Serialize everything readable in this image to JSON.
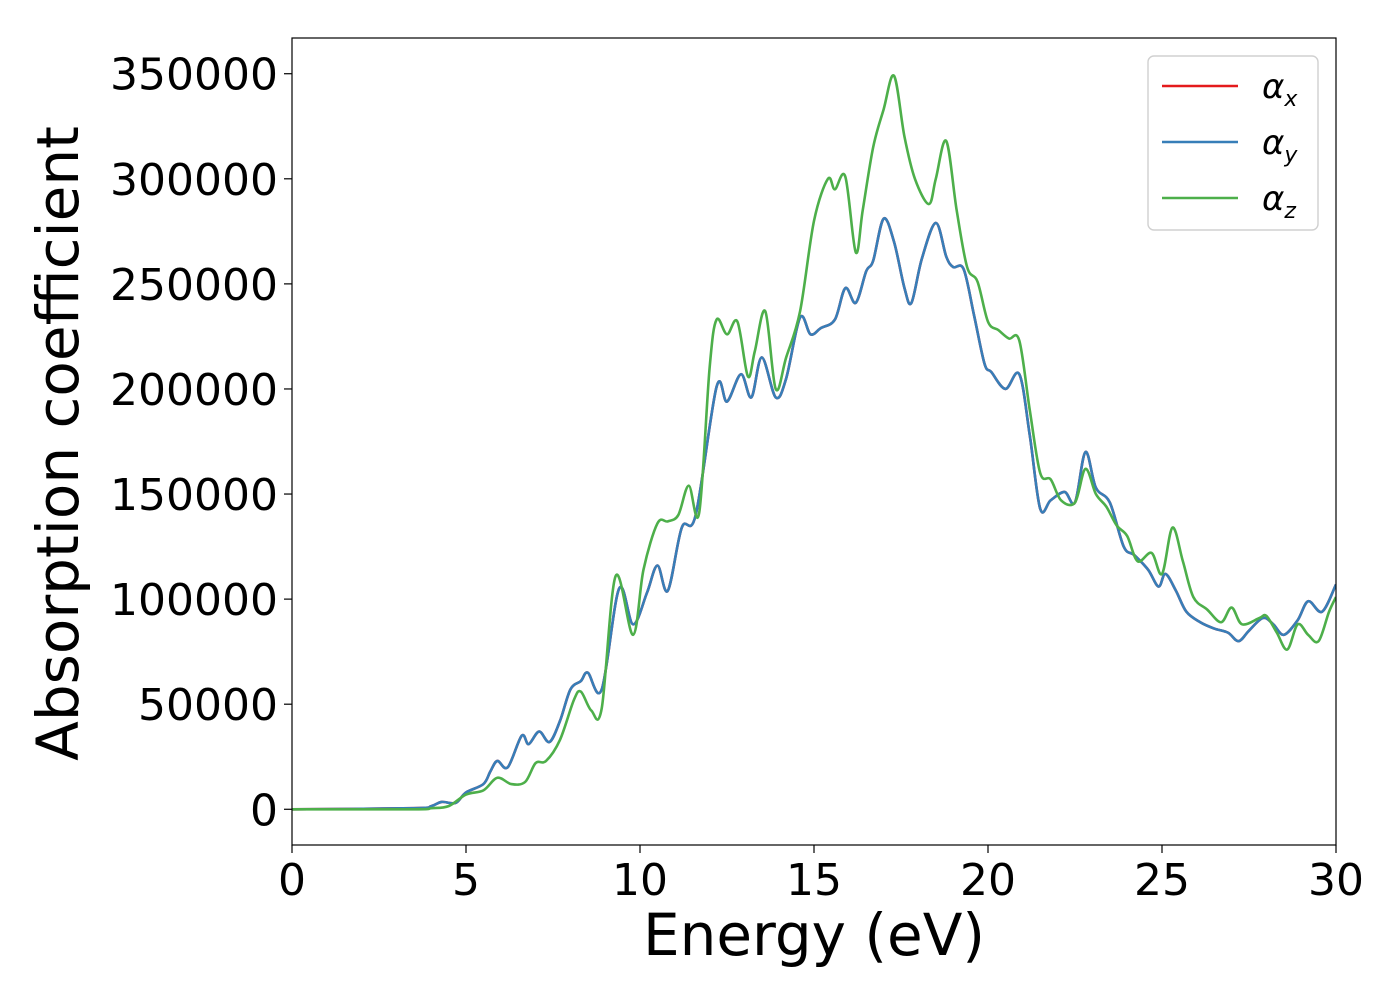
{
  "chart_data": {
    "type": "line",
    "title": "",
    "xlabel": "Energy (eV)",
    "ylabel": "Absorption coefficient",
    "xlim": [
      0,
      30
    ],
    "ylim": [
      -17000,
      367000
    ],
    "xticks": [
      0,
      5,
      10,
      15,
      20,
      25,
      30
    ],
    "xtick_labels": [
      "0",
      "5",
      "10",
      "15",
      "20",
      "25",
      "30"
    ],
    "yticks": [
      0,
      50000,
      100000,
      150000,
      200000,
      250000,
      300000,
      350000
    ],
    "ytick_labels": [
      "0",
      "50000",
      "100000",
      "150000",
      "200000",
      "250000",
      "300000",
      "350000"
    ],
    "grid": false,
    "legend_position": "top-right",
    "series": [
      {
        "name": "αx",
        "symbol": "α",
        "subscript": "x",
        "color": "#e41a1c",
        "x": [
          0,
          3.5,
          4.0,
          4.3,
          4.7,
          5.0,
          5.5,
          5.7,
          5.9,
          6.2,
          6.6,
          6.8,
          7.1,
          7.4,
          7.7,
          8.0,
          8.3,
          8.5,
          8.9,
          9.4,
          9.8,
          10.2,
          10.5,
          10.8,
          11.2,
          11.6,
          12.2,
          12.5,
          12.9,
          13.2,
          13.5,
          13.9,
          14.2,
          14.6,
          14.9,
          15.2,
          15.6,
          15.9,
          16.2,
          16.5,
          16.7,
          17.0,
          17.3,
          17.6,
          17.8,
          18.1,
          18.5,
          18.8,
          19.0,
          19.3,
          19.6,
          19.9,
          20.1,
          20.5,
          20.9,
          21.2,
          21.5,
          21.8,
          22.2,
          22.5,
          22.8,
          23.1,
          23.5,
          23.9,
          24.2,
          24.6,
          24.9,
          25.1,
          25.4,
          25.7,
          26.1,
          26.5,
          26.9,
          27.2,
          27.5,
          27.9,
          28.2,
          28.5,
          28.9,
          29.2,
          29.6,
          30.0
        ],
        "y": [
          0,
          500,
          1500,
          3500,
          3000,
          8000,
          12000,
          18000,
          23000,
          20000,
          35000,
          31000,
          37000,
          32000,
          42000,
          57000,
          61000,
          65000,
          57000,
          105000,
          88000,
          103000,
          116000,
          104000,
          134000,
          140000,
          201000,
          194000,
          207000,
          196000,
          215000,
          196000,
          205000,
          234000,
          226000,
          229000,
          233000,
          248000,
          241000,
          256000,
          261000,
          281000,
          270000,
          248000,
          241000,
          262000,
          279000,
          263000,
          258000,
          257000,
          235000,
          212000,
          208000,
          200000,
          207000,
          178000,
          143000,
          147000,
          151000,
          146000,
          170000,
          153000,
          146000,
          125000,
          121000,
          114000,
          106000,
          112000,
          104000,
          94000,
          89000,
          86000,
          84000,
          80000,
          85000,
          91000,
          88000,
          83000,
          90000,
          99000,
          94000,
          107000
        ]
      },
      {
        "name": "αy",
        "symbol": "α",
        "subscript": "y",
        "color": "#377eb8",
        "x": [
          0,
          3.5,
          4.0,
          4.3,
          4.7,
          5.0,
          5.5,
          5.7,
          5.9,
          6.2,
          6.6,
          6.8,
          7.1,
          7.4,
          7.7,
          8.0,
          8.3,
          8.5,
          8.9,
          9.4,
          9.8,
          10.2,
          10.5,
          10.8,
          11.2,
          11.6,
          12.2,
          12.5,
          12.9,
          13.2,
          13.5,
          13.9,
          14.2,
          14.6,
          14.9,
          15.2,
          15.6,
          15.9,
          16.2,
          16.5,
          16.7,
          17.0,
          17.3,
          17.6,
          17.8,
          18.1,
          18.5,
          18.8,
          19.0,
          19.3,
          19.6,
          19.9,
          20.1,
          20.5,
          20.9,
          21.2,
          21.5,
          21.8,
          22.2,
          22.5,
          22.8,
          23.1,
          23.5,
          23.9,
          24.2,
          24.6,
          24.9,
          25.1,
          25.4,
          25.7,
          26.1,
          26.5,
          26.9,
          27.2,
          27.5,
          27.9,
          28.2,
          28.5,
          28.9,
          29.2,
          29.6,
          30.0
        ],
        "y": [
          0,
          500,
          1500,
          3500,
          3000,
          8000,
          12000,
          18000,
          23000,
          20000,
          35000,
          31000,
          37000,
          32000,
          42000,
          57000,
          61000,
          65000,
          57000,
          105000,
          88000,
          103000,
          116000,
          104000,
          134000,
          140000,
          201000,
          194000,
          207000,
          196000,
          215000,
          196000,
          205000,
          234000,
          226000,
          229000,
          233000,
          248000,
          241000,
          256000,
          261000,
          281000,
          270000,
          248000,
          241000,
          262000,
          279000,
          263000,
          258000,
          257000,
          235000,
          212000,
          208000,
          200000,
          207000,
          178000,
          143000,
          147000,
          151000,
          146000,
          170000,
          153000,
          146000,
          125000,
          121000,
          114000,
          106000,
          112000,
          104000,
          94000,
          89000,
          86000,
          84000,
          80000,
          85000,
          91000,
          88000,
          83000,
          90000,
          99000,
          94000,
          107000
        ]
      },
      {
        "name": "αz",
        "symbol": "α",
        "subscript": "z",
        "color": "#4daf4a",
        "x": [
          0,
          3.5,
          4.0,
          4.5,
          5.0,
          5.5,
          5.9,
          6.3,
          6.7,
          7.0,
          7.3,
          7.7,
          8.1,
          8.3,
          8.6,
          8.9,
          9.3,
          9.8,
          10.1,
          10.5,
          10.8,
          11.1,
          11.4,
          11.7,
          12.0,
          12.2,
          12.5,
          12.8,
          13.1,
          13.3,
          13.6,
          13.9,
          14.2,
          14.6,
          15.0,
          15.4,
          15.6,
          15.9,
          16.2,
          16.4,
          16.7,
          17.0,
          17.3,
          17.6,
          17.9,
          18.3,
          18.5,
          18.8,
          19.1,
          19.4,
          19.7,
          20.0,
          20.3,
          20.6,
          20.9,
          21.2,
          21.5,
          21.8,
          22.1,
          22.5,
          22.8,
          23.1,
          23.4,
          23.7,
          24.0,
          24.3,
          24.7,
          25.0,
          25.3,
          25.6,
          25.9,
          26.3,
          26.7,
          27.0,
          27.3,
          27.8,
          28.0,
          28.3,
          28.6,
          28.9,
          29.2,
          29.5,
          29.8,
          30.0
        ],
        "y": [
          0,
          0,
          500,
          1500,
          7000,
          9000,
          15000,
          12000,
          13000,
          22000,
          23000,
          33000,
          52000,
          56000,
          47000,
          48000,
          111000,
          83000,
          114000,
          136000,
          137000,
          140000,
          154000,
          141000,
          210000,
          233000,
          226000,
          232000,
          206000,
          218000,
          237000,
          200000,
          215000,
          237000,
          280000,
          300000,
          295000,
          301000,
          265000,
          285000,
          315000,
          333000,
          349000,
          320000,
          300000,
          288000,
          300000,
          318000,
          285000,
          258000,
          251000,
          232000,
          228000,
          224000,
          223000,
          190000,
          160000,
          157000,
          147000,
          146000,
          162000,
          150000,
          144000,
          135000,
          130000,
          118000,
          122000,
          112000,
          134000,
          118000,
          101000,
          95000,
          89000,
          96000,
          88000,
          91000,
          92000,
          84000,
          76000,
          88000,
          83000,
          80000,
          94000,
          101000
        ]
      }
    ]
  }
}
